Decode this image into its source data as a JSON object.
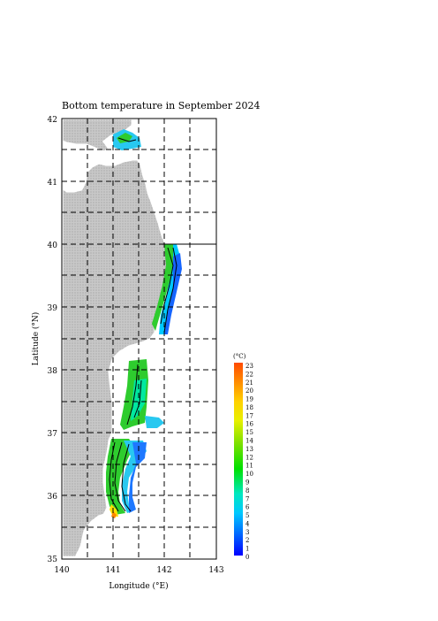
{
  "map": {
    "title": "Bottom temperature in September 2024",
    "xlabel": "Longitude (°E)",
    "ylabel": "Latitude (°N)",
    "lon_ticks": [
      "140",
      "141",
      "142",
      "143"
    ],
    "lat_ticks": [
      "42",
      "41",
      "40",
      "39",
      "38",
      "37",
      "36",
      "35"
    ],
    "lon_range": [
      140,
      143
    ],
    "lat_range": [
      35,
      42
    ],
    "gridlines": "dashed every 0.5°"
  },
  "colorbar": {
    "unit": "(°C)",
    "ticks": [
      "23",
      "22",
      "21",
      "20",
      "19",
      "18",
      "17",
      "16",
      "15",
      "14",
      "13",
      "12",
      "11",
      "10",
      "9",
      "8",
      "7",
      "6",
      "5",
      "4",
      "3",
      "2",
      "1",
      "0"
    ]
  },
  "colors": {
    "land": "#bdbdbd",
    "coast_fringe": "#ffffff",
    "cold": "#1565ff",
    "mid": "#2ecc2e",
    "warm": "#ff5a00"
  }
}
